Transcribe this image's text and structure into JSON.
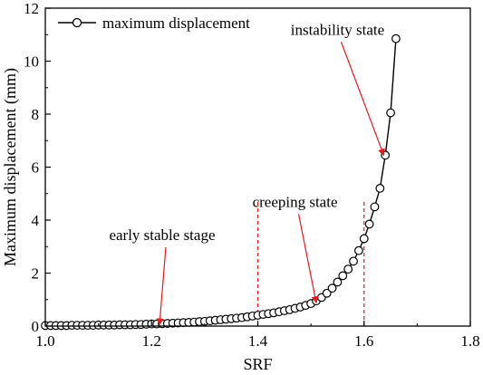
{
  "chart_data": {
    "type": "line",
    "xlabel": "SRF",
    "ylabel": "Maximum displacement (mm)",
    "xlim": [
      1.0,
      1.8
    ],
    "ylim": [
      0,
      12
    ],
    "xticks": [
      "1.0",
      "1.2",
      "1.4",
      "1.6",
      "1.8"
    ],
    "yticks": [
      "0",
      "2",
      "4",
      "6",
      "8",
      "10",
      "12"
    ],
    "legend": {
      "position": "top-left",
      "label": "maximum displacement"
    },
    "series": [
      {
        "name": "maximum displacement",
        "marker": "open-circle",
        "color": "#000000",
        "x": [
          1.0,
          1.01,
          1.02,
          1.03,
          1.04,
          1.05,
          1.06,
          1.07,
          1.08,
          1.09,
          1.1,
          1.11,
          1.12,
          1.13,
          1.14,
          1.15,
          1.16,
          1.17,
          1.18,
          1.19,
          1.2,
          1.21,
          1.22,
          1.23,
          1.24,
          1.25,
          1.26,
          1.27,
          1.28,
          1.29,
          1.3,
          1.31,
          1.32,
          1.33,
          1.34,
          1.35,
          1.36,
          1.37,
          1.38,
          1.39,
          1.4,
          1.41,
          1.42,
          1.43,
          1.44,
          1.45,
          1.46,
          1.47,
          1.48,
          1.49,
          1.5,
          1.51,
          1.52,
          1.53,
          1.54,
          1.55,
          1.56,
          1.57,
          1.58,
          1.59,
          1.6,
          1.61,
          1.62,
          1.63,
          1.64,
          1.65,
          1.66
        ],
        "y": [
          0.02,
          0.02,
          0.02,
          0.02,
          0.02,
          0.03,
          0.03,
          0.03,
          0.03,
          0.03,
          0.04,
          0.04,
          0.04,
          0.04,
          0.05,
          0.05,
          0.05,
          0.06,
          0.06,
          0.07,
          0.08,
          0.08,
          0.09,
          0.1,
          0.11,
          0.12,
          0.13,
          0.14,
          0.15,
          0.17,
          0.18,
          0.2,
          0.22,
          0.24,
          0.26,
          0.28,
          0.3,
          0.32,
          0.35,
          0.38,
          0.41,
          0.44,
          0.47,
          0.5,
          0.54,
          0.58,
          0.62,
          0.67,
          0.72,
          0.78,
          0.85,
          0.95,
          1.08,
          1.24,
          1.43,
          1.66,
          1.9,
          2.15,
          2.45,
          2.85,
          3.3,
          3.85,
          4.5,
          5.2,
          6.45,
          8.05,
          10.85
        ]
      }
    ],
    "vlines": [
      1.4,
      1.6
    ],
    "vline_color": "#e8191f",
    "annotations": [
      {
        "text": "early stable stage",
        "x": 1.215,
        "y": 0.05,
        "label_x": 1.22,
        "label_y": 3.25
      },
      {
        "text": "creeping state",
        "x": 1.51,
        "y": 0.88,
        "label_x": 1.47,
        "label_y": 4.5
      },
      {
        "text": "instability state",
        "x": 1.637,
        "y": 6.45,
        "label_x": 1.55,
        "label_y": 11.0
      }
    ],
    "grid": false
  }
}
